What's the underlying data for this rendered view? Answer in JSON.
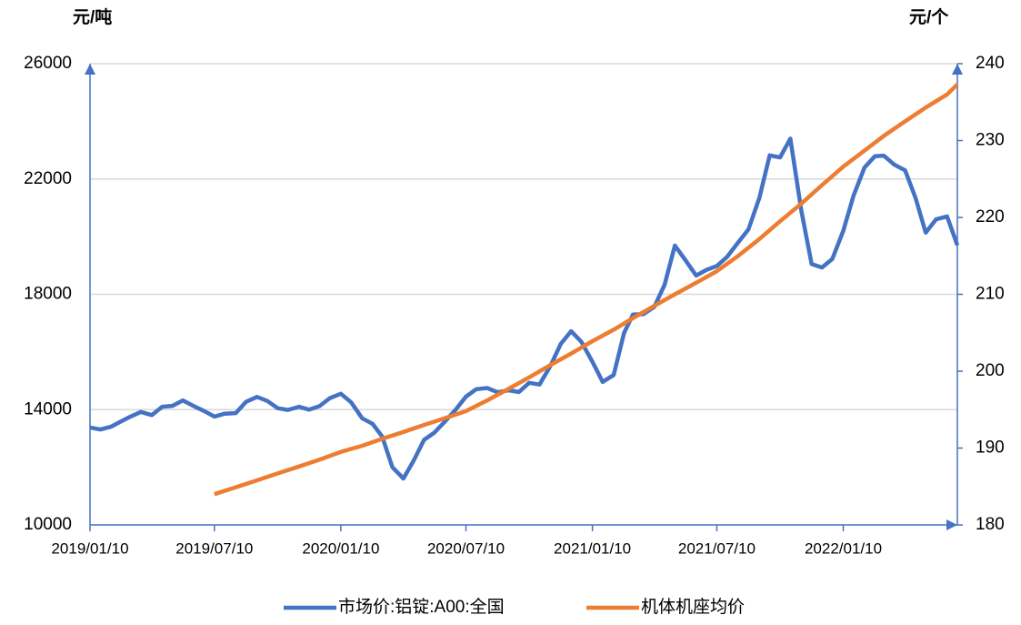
{
  "chart_data": {
    "type": "line",
    "left_unit": "元/吨",
    "right_unit": "元/个",
    "xlim": [
      "2019/01/10",
      "2022/06/25"
    ],
    "xticks": [
      "2019/01/10",
      "2019/07/10",
      "2020/01/10",
      "2020/07/10",
      "2021/01/10",
      "2021/07/10",
      "2022/01/10"
    ],
    "ylim": [
      10000,
      26000
    ],
    "yticks": [
      10000,
      14000,
      18000,
      22000,
      26000
    ],
    "y2lim": [
      180,
      240
    ],
    "y2ticks": [
      180,
      190,
      200,
      210,
      220,
      230,
      240
    ],
    "grid": true,
    "legend": "bottom",
    "axis_color": "#4472c4",
    "series": [
      {
        "name": "市场价:铝锭:A00:全国",
        "color": "#4472c4",
        "x": [
          "2019/01/10",
          "2019/01/25",
          "2019/02/10",
          "2019/02/25",
          "2019/03/10",
          "2019/03/25",
          "2019/04/10",
          "2019/04/25",
          "2019/05/10",
          "2019/05/25",
          "2019/06/10",
          "2019/06/25",
          "2019/07/10",
          "2019/07/25",
          "2019/08/10",
          "2019/08/25",
          "2019/09/10",
          "2019/09/25",
          "2019/10/10",
          "2019/10/25",
          "2019/11/10",
          "2019/11/25",
          "2019/12/10",
          "2019/12/25",
          "2020/01/10",
          "2020/01/25",
          "2020/02/10",
          "2020/02/25",
          "2020/03/10",
          "2020/03/25",
          "2020/04/10",
          "2020/04/25",
          "2020/05/10",
          "2020/05/25",
          "2020/06/10",
          "2020/06/25",
          "2020/07/10",
          "2020/07/25",
          "2020/08/10",
          "2020/08/25",
          "2020/09/10",
          "2020/09/25",
          "2020/10/10",
          "2020/10/25",
          "2020/11/10",
          "2020/11/25",
          "2020/12/10",
          "2020/12/25",
          "2021/01/10",
          "2021/01/25",
          "2021/02/10",
          "2021/02/25",
          "2021/03/10",
          "2021/03/25",
          "2021/04/10",
          "2021/04/25",
          "2021/05/10",
          "2021/05/25",
          "2021/06/10",
          "2021/06/25",
          "2021/07/10",
          "2021/07/25",
          "2021/08/10",
          "2021/08/25",
          "2021/09/10",
          "2021/09/25",
          "2021/10/10",
          "2021/10/25",
          "2021/11/10",
          "2021/11/25",
          "2021/12/10",
          "2021/12/25",
          "2022/01/10",
          "2022/01/25",
          "2022/02/10",
          "2022/02/25",
          "2022/03/10",
          "2022/03/25",
          "2022/04/10",
          "2022/04/25",
          "2022/05/10",
          "2022/05/25",
          "2022/06/10",
          "2022/06/25"
        ],
        "values": [
          13380,
          13310,
          13410,
          13600,
          13760,
          13920,
          13810,
          14100,
          14130,
          14320,
          14120,
          13950,
          13760,
          13860,
          13880,
          14270,
          14440,
          14300,
          14050,
          13990,
          14100,
          14000,
          14120,
          14400,
          14550,
          14250,
          13700,
          13510,
          13070,
          12000,
          11610,
          12230,
          12950,
          13200,
          13600,
          14000,
          14450,
          14710,
          14750,
          14600,
          14670,
          14610,
          14930,
          14870,
          15520,
          16280,
          16720,
          16350,
          15660,
          14960,
          15200,
          16660,
          17300,
          17310,
          17560,
          18330,
          19690,
          19200,
          18650,
          18850,
          18980,
          19300,
          19800,
          20250,
          21350,
          22820,
          22750,
          23400,
          20900,
          19050,
          18930,
          19220,
          20200,
          21430,
          22400,
          22790,
          22810,
          22500,
          22300,
          21350,
          20140,
          20600,
          20700,
          19700
        ]
      },
      {
        "name": "机体机座均价",
        "color": "#ed7d31",
        "axis": "y2",
        "x": [
          "2019/07/10",
          "2019/08/10",
          "2019/09/10",
          "2019/10/10",
          "2019/11/10",
          "2019/12/10",
          "2020/01/10",
          "2020/02/10",
          "2020/03/10",
          "2020/04/10",
          "2020/05/10",
          "2020/06/10",
          "2020/07/10",
          "2020/08/10",
          "2020/09/10",
          "2020/10/10",
          "2020/11/10",
          "2020/12/10",
          "2021/01/10",
          "2021/02/10",
          "2021/03/10",
          "2021/04/10",
          "2021/05/10",
          "2021/06/10",
          "2021/07/10",
          "2021/08/10",
          "2021/09/10",
          "2021/10/10",
          "2021/11/10",
          "2021/12/10",
          "2022/01/10",
          "2022/02/10",
          "2022/03/10",
          "2022/04/10",
          "2022/05/10",
          "2022/06/10",
          "2022/06/25"
        ],
        "values": [
          184.0,
          184.9,
          185.8,
          186.7,
          187.6,
          188.5,
          189.5,
          190.3,
          191.2,
          192.1,
          193.0,
          193.9,
          194.8,
          196.2,
          197.7,
          199.2,
          200.8,
          202.3,
          203.9,
          205.4,
          206.9,
          208.5,
          210.0,
          211.5,
          213.0,
          215.0,
          217.2,
          219.5,
          221.8,
          224.2,
          226.6,
          228.7,
          230.6,
          232.5,
          234.3,
          236.0,
          237.3
        ]
      }
    ]
  }
}
